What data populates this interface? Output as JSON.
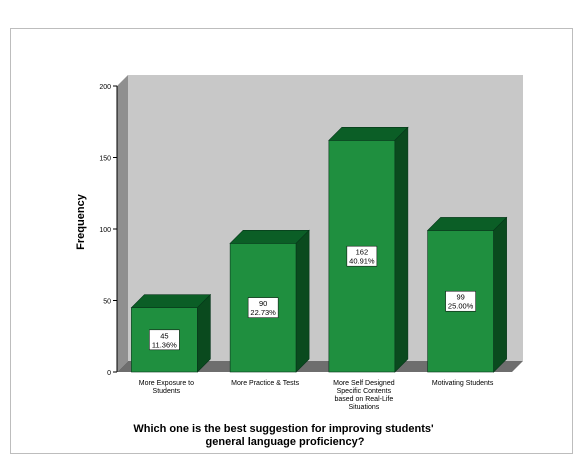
{
  "chart_data": {
    "type": "bar",
    "title": "Which one is the best suggestion for improving students' general language proficiency?",
    "title_lines": [
      "Which one is the best suggestion for improving students'",
      "general language proficiency?"
    ],
    "xlabel": "Which one is the best suggestion for improving students' general language proficiency?",
    "ylabel": "Frequency",
    "ylim": [
      0,
      200
    ],
    "yticks": [
      0,
      50,
      100,
      150,
      200
    ],
    "grid": false,
    "legend": "none",
    "style": "3d",
    "categories": [
      "More Exposure to Students",
      "More Practice & Tests",
      "More Self Designed Specific Contents based on Real-Life Situations",
      "Motivating Students"
    ],
    "category_lines": [
      [
        "More Exposure to",
        "Students"
      ],
      [
        "More Practice & Tests"
      ],
      [
        "More Self Designed",
        "Specific Contents",
        "based on Real-Life",
        "Situations"
      ],
      [
        "Motivating Students"
      ]
    ],
    "values": [
      45,
      90,
      162,
      99
    ],
    "percent_labels": [
      "11.36%",
      "22.73%",
      "40.91%",
      "25.00%"
    ],
    "colors": {
      "bar_front": "#1f8f3f",
      "bar_top": "#0b5e26",
      "bar_side": "#0a4a1e",
      "plot_back": "#c8c8c8",
      "plot_side": "#8f8f8f",
      "floor": "#6e6e6e"
    }
  }
}
